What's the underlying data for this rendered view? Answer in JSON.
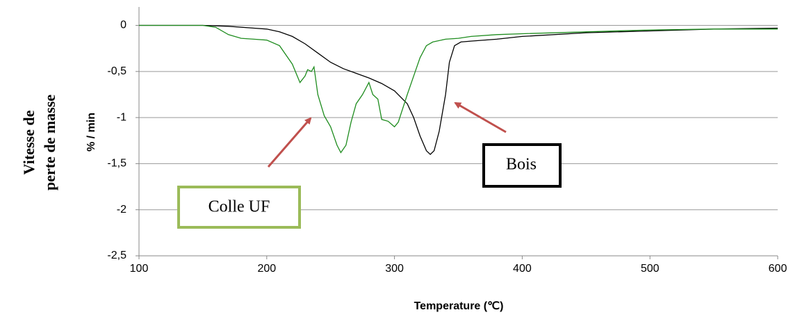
{
  "chart_data": {
    "type": "line",
    "x_label": "Temperature (℃)",
    "y_label": "% / min",
    "y_label_outer": [
      "Vitesse de",
      "perte de masse"
    ],
    "xlim": [
      100,
      600
    ],
    "xticks": [
      100,
      200,
      300,
      400,
      500,
      600
    ],
    "ylim": [
      -2.5,
      0.2
    ],
    "yticks": [
      {
        "value": -2.5,
        "label": "-2,5"
      },
      -2,
      {
        "value": -1.5,
        "label": "-1,5"
      },
      -1,
      {
        "value": -0.5,
        "label": "-0,5"
      },
      0
    ],
    "grid": true,
    "series": [
      {
        "name": "Bois",
        "color": "#000000",
        "x": [
          100,
          150,
          170,
          190,
          200,
          210,
          220,
          230,
          240,
          250,
          260,
          270,
          280,
          290,
          300,
          310,
          315,
          320,
          325,
          328,
          331,
          335,
          340,
          343,
          347,
          352,
          360,
          380,
          400,
          450,
          500,
          550,
          600
        ],
        "values": [
          0,
          0,
          -0.01,
          -0.03,
          -0.04,
          -0.07,
          -0.12,
          -0.2,
          -0.3,
          -0.4,
          -0.47,
          -0.52,
          -0.57,
          -0.63,
          -0.71,
          -0.85,
          -1.0,
          -1.2,
          -1.36,
          -1.4,
          -1.36,
          -1.15,
          -0.75,
          -0.4,
          -0.22,
          -0.18,
          -0.17,
          -0.15,
          -0.12,
          -0.08,
          -0.06,
          -0.04,
          -0.03
        ]
      },
      {
        "name": "Colle UF",
        "color": "#1e8c1e",
        "x": [
          100,
          150,
          160,
          170,
          180,
          190,
          200,
          210,
          220,
          226,
          230,
          232,
          235,
          237,
          240,
          245,
          250,
          255,
          258,
          262,
          266,
          270,
          275,
          280,
          283,
          287,
          290,
          295,
          300,
          303,
          310,
          315,
          320,
          325,
          330,
          340,
          350,
          360,
          380,
          400,
          450,
          500,
          550,
          600
        ],
        "values": [
          0,
          0,
          -0.02,
          -0.1,
          -0.14,
          -0.15,
          -0.16,
          -0.22,
          -0.42,
          -0.62,
          -0.55,
          -0.48,
          -0.5,
          -0.45,
          -0.75,
          -0.98,
          -1.1,
          -1.3,
          -1.38,
          -1.3,
          -1.05,
          -0.85,
          -0.75,
          -0.62,
          -0.75,
          -0.8,
          -1.02,
          -1.04,
          -1.1,
          -1.05,
          -0.75,
          -0.55,
          -0.35,
          -0.22,
          -0.18,
          -0.15,
          -0.14,
          -0.12,
          -0.1,
          -0.09,
          -0.07,
          -0.05,
          -0.04,
          -0.04
        ]
      }
    ]
  }
}
